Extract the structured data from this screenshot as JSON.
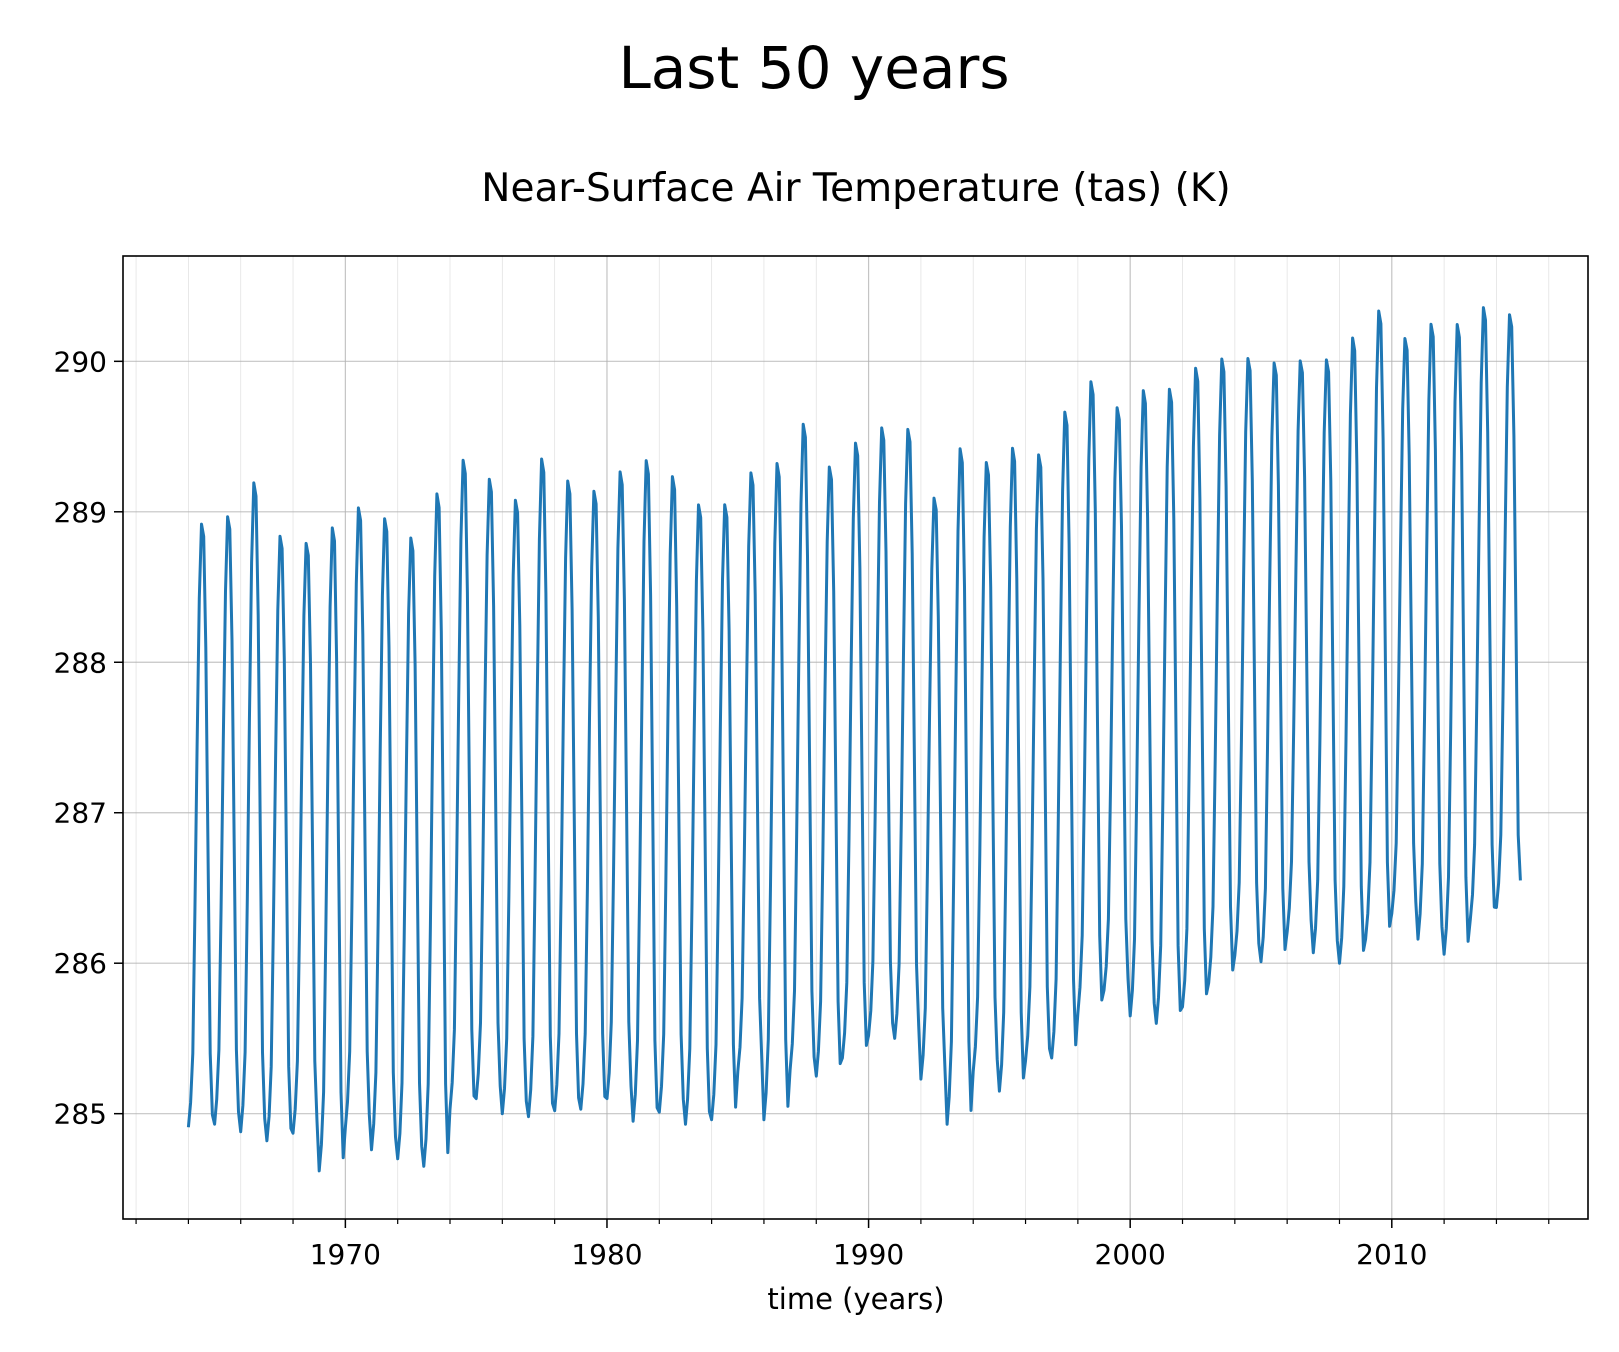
{
  "figure": {
    "suptitle": "Last 50 years"
  },
  "chart_data": {
    "type": "line",
    "title": "Near-Surface Air Temperature (tas) (K)",
    "xlabel": "time (years)",
    "ylabel": "",
    "xlim": [
      1961.5,
      2017.5
    ],
    "ylim": [
      284.3,
      290.7
    ],
    "x_ticks": [
      1970,
      1980,
      1990,
      2000,
      2010
    ],
    "x_tick_labels": [
      "1970",
      "1980",
      "1990",
      "2000",
      "2010"
    ],
    "y_ticks": [
      285,
      286,
      287,
      288,
      289,
      290
    ],
    "y_tick_labels": [
      "285",
      "286",
      "287",
      "288",
      "289",
      "290"
    ],
    "x_minor_ticks": [
      1962,
      1964,
      1966,
      1968,
      1972,
      1974,
      1976,
      1978,
      1982,
      1984,
      1986,
      1988,
      1992,
      1994,
      1996,
      1998,
      2002,
      2004,
      2006,
      2008,
      2012,
      2014,
      2016
    ],
    "grid": true,
    "series": [
      {
        "name": "tas",
        "color": "#1f77b4",
        "description": "Monthly global mean near-surface air temperature; one value per month from Jan 1964 to Dec 2014",
        "start_year": 1964,
        "monthly_profile": [
          0.0,
          0.04,
          0.12,
          0.35,
          0.62,
          0.86,
          0.98,
          0.96,
          0.78,
          0.45,
          0.12,
          0.02
        ],
        "annual_min": [
          284.91,
          284.93,
          284.88,
          284.82,
          284.87,
          284.62,
          284.91,
          284.76,
          284.7,
          284.65,
          285.03,
          285.1,
          285.0,
          284.98,
          285.02,
          285.03,
          285.1,
          284.95,
          285.01,
          284.93,
          284.96,
          285.28,
          284.96,
          285.29,
          285.25,
          285.37,
          285.52,
          285.5,
          285.23,
          284.93,
          285.28,
          285.15,
          285.35,
          285.37,
          285.67,
          285.82,
          285.65,
          285.6,
          285.71,
          285.87,
          286.05,
          286.01,
          286.21,
          286.07,
          286.0,
          286.16,
          286.33,
          286.16,
          286.06,
          286.29,
          286.37
        ],
        "annual_max": [
          289.0,
          289.05,
          289.28,
          288.92,
          288.87,
          288.98,
          289.11,
          289.04,
          288.91,
          289.21,
          289.43,
          289.3,
          289.16,
          289.44,
          289.29,
          289.22,
          289.35,
          289.43,
          289.32,
          289.13,
          289.13,
          289.34,
          289.41,
          289.67,
          289.38,
          289.54,
          289.64,
          289.63,
          289.17,
          289.51,
          289.41,
          289.51,
          289.46,
          289.75,
          289.95,
          289.77,
          289.89,
          289.9,
          290.04,
          290.1,
          290.1,
          290.07,
          290.08,
          290.09,
          290.24,
          290.42,
          290.23,
          290.33,
          290.33,
          290.44,
          290.39
        ],
        "end_value": 286.55
      }
    ]
  }
}
